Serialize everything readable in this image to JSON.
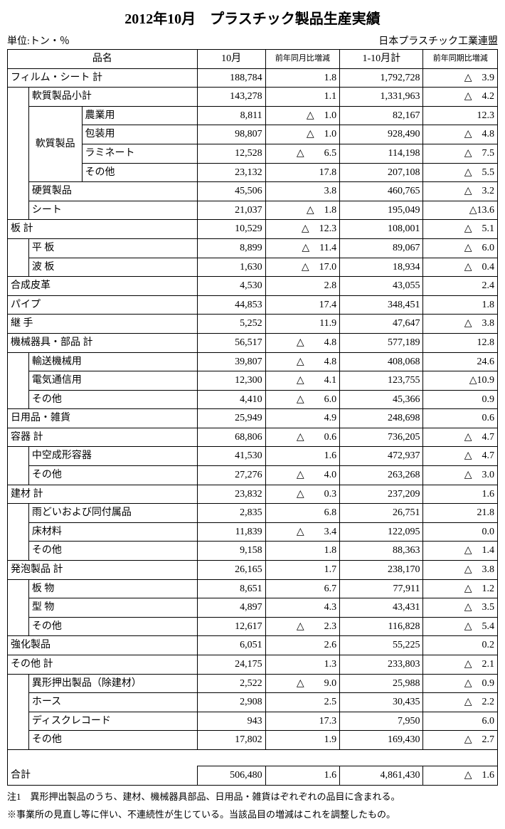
{
  "title": "2012年10月　プラスチック製品生産実績",
  "unit_label": "単位:トン・％",
  "org_label": "日本プラスチック工業連盟",
  "headers": {
    "name": "品名",
    "oct": "10月",
    "mom": "前年同月比増減",
    "cum": "1-10月計",
    "yoy": "前年同期比増減"
  },
  "vlabel_soft": "軟質製品",
  "rows": [
    {
      "n": "フィルム・シート 計",
      "a": "188,784",
      "b": "1.8",
      "c": "1,792,728",
      "d": "△　3.9",
      "span": 3,
      "i": 0
    },
    {
      "n": "軟質製品小計",
      "a": "143,278",
      "b": "1.1",
      "c": "1,331,963",
      "d": "△　4.2",
      "span": 2,
      "i": 1
    },
    {
      "n": "農業用",
      "a": "8,811",
      "b": "△　1.0",
      "c": "82,167",
      "d": "12.3",
      "span": 1,
      "i": 2,
      "rs": 4
    },
    {
      "n": "包装用",
      "a": "98,807",
      "b": "△　1.0",
      "c": "928,490",
      "d": "△　4.8",
      "span": 1,
      "i": 2
    },
    {
      "n": "ラミネート",
      "a": "12,528",
      "b": "△　　6.5",
      "c": "114,198",
      "d": "△　7.5",
      "span": 1,
      "i": 2
    },
    {
      "n": "その他",
      "a": "23,132",
      "b": "17.8",
      "c": "207,108",
      "d": "△　5.5",
      "span": 1,
      "i": 2
    },
    {
      "n": "硬質製品",
      "a": "45,506",
      "b": "3.8",
      "c": "460,765",
      "d": "△　3.2",
      "span": 2,
      "i": 1
    },
    {
      "n": "シート",
      "a": "21,037",
      "b": "△　1.8",
      "c": "195,049",
      "d": "△13.6",
      "span": 2,
      "i": 1
    },
    {
      "n": "板 計",
      "a": "10,529",
      "b": "△　12.3",
      "c": "108,001",
      "d": "△　5.1",
      "span": 3,
      "i": 0
    },
    {
      "n": "平 板",
      "a": "8,899",
      "b": "△　11.4",
      "c": "89,067",
      "d": "△　6.0",
      "span": 2,
      "i": 1
    },
    {
      "n": "波 板",
      "a": "1,630",
      "b": "△　17.0",
      "c": "18,934",
      "d": "△　0.4",
      "span": 2,
      "i": 1
    },
    {
      "n": "合成皮革",
      "a": "4,530",
      "b": "2.8",
      "c": "43,055",
      "d": "2.4",
      "span": 3,
      "i": 0
    },
    {
      "n": "パイプ",
      "a": "44,853",
      "b": "17.4",
      "c": "348,451",
      "d": "1.8",
      "span": 3,
      "i": 0
    },
    {
      "n": "継 手",
      "a": "5,252",
      "b": "11.9",
      "c": "47,647",
      "d": "△　3.8",
      "span": 3,
      "i": 0
    },
    {
      "n": "機械器具・部品 計",
      "a": "56,517",
      "b": "△　　4.8",
      "c": "577,189",
      "d": "12.8",
      "span": 3,
      "i": 0
    },
    {
      "n": "輸送機械用",
      "a": "39,807",
      "b": "△　　4.8",
      "c": "408,068",
      "d": "24.6",
      "span": 2,
      "i": 1
    },
    {
      "n": "電気通信用",
      "a": "12,300",
      "b": "△　　4.1",
      "c": "123,755",
      "d": "△10.9",
      "span": 2,
      "i": 1
    },
    {
      "n": "その他",
      "a": "4,410",
      "b": "△　　6.0",
      "c": "45,366",
      "d": "0.9",
      "span": 2,
      "i": 1
    },
    {
      "n": "日用品・雑貨",
      "a": "25,949",
      "b": "4.9",
      "c": "248,698",
      "d": "0.6",
      "span": 3,
      "i": 0
    },
    {
      "n": "容器 計",
      "a": "68,806",
      "b": "△　　0.6",
      "c": "736,205",
      "d": "△　4.7",
      "span": 3,
      "i": 0
    },
    {
      "n": "中空成形容器",
      "a": "41,530",
      "b": "1.6",
      "c": "472,937",
      "d": "△　4.7",
      "span": 2,
      "i": 1
    },
    {
      "n": "その他",
      "a": "27,276",
      "b": "△　　4.0",
      "c": "263,268",
      "d": "△　3.0",
      "span": 2,
      "i": 1
    },
    {
      "n": "建材 計",
      "a": "23,832",
      "b": "△　　0.3",
      "c": "237,209",
      "d": "1.6",
      "span": 3,
      "i": 0
    },
    {
      "n": "雨どいおよび同付属品",
      "a": "2,835",
      "b": "6.8",
      "c": "26,751",
      "d": "21.8",
      "span": 2,
      "i": 1
    },
    {
      "n": "床材料",
      "a": "11,839",
      "b": "△　　3.4",
      "c": "122,095",
      "d": "0.0",
      "span": 2,
      "i": 1
    },
    {
      "n": "その他",
      "a": "9,158",
      "b": "1.8",
      "c": "88,363",
      "d": "△　1.4",
      "span": 2,
      "i": 1
    },
    {
      "n": "発泡製品 計",
      "a": "26,165",
      "b": "1.7",
      "c": "238,170",
      "d": "△　3.8",
      "span": 3,
      "i": 0
    },
    {
      "n": "板 物",
      "a": "8,651",
      "b": "6.7",
      "c": "77,911",
      "d": "△　1.2",
      "span": 2,
      "i": 1
    },
    {
      "n": "型 物",
      "a": "4,897",
      "b": "4.3",
      "c": "43,431",
      "d": "△　3.5",
      "span": 2,
      "i": 1
    },
    {
      "n": "その他",
      "a": "12,617",
      "b": "△　　2.3",
      "c": "116,828",
      "d": "△　5.4",
      "span": 2,
      "i": 1
    },
    {
      "n": "強化製品",
      "a": "6,051",
      "b": "2.6",
      "c": "55,225",
      "d": "0.2",
      "span": 3,
      "i": 0
    },
    {
      "n": "その他 計",
      "a": "24,175",
      "b": "1.3",
      "c": "233,803",
      "d": "△　2.1",
      "span": 3,
      "i": 0
    },
    {
      "n": "異形押出製品（除建材）",
      "a": "2,522",
      "b": "△　　9.0",
      "c": "25,988",
      "d": "△　0.9",
      "span": 2,
      "i": 1
    },
    {
      "n": "ホース",
      "a": "2,908",
      "b": "2.5",
      "c": "30,435",
      "d": "△　2.2",
      "span": 2,
      "i": 1
    },
    {
      "n": "ディスクレコード",
      "a": "943",
      "b": "17.3",
      "c": "7,950",
      "d": "6.0",
      "span": 2,
      "i": 1
    },
    {
      "n": "その他",
      "a": "17,802",
      "b": "1.9",
      "c": "169,430",
      "d": "△　2.7",
      "span": 2,
      "i": 1
    }
  ],
  "total": {
    "n": "合計",
    "a": "506,480",
    "b": "1.6",
    "c": "4,861,430",
    "d": "△　1.6"
  },
  "footnote1": "注1　異形押出製品のうち、建材、機械器具部品、日用品・雑貨はぞれぞれの品目に含まれる。",
  "footnote2": "※事業所の見直し等に伴い、不連続性が生じている。当該品目の増減はこれを調整したもの。"
}
